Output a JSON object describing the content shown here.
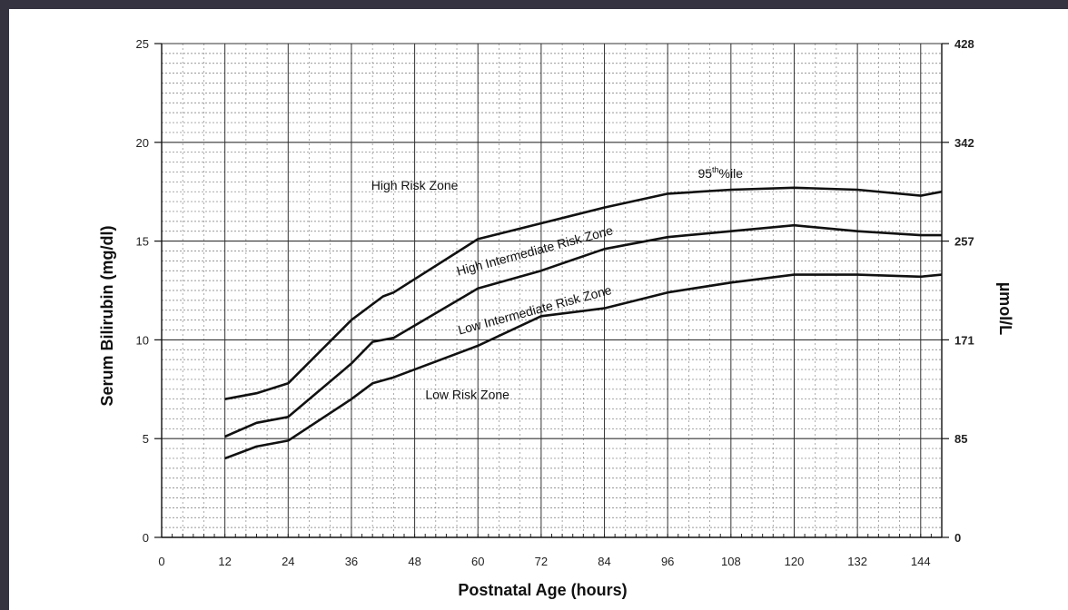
{
  "chart_data": {
    "type": "line",
    "xlabel": "Postnatal Age (hours)",
    "ylabel": "Serum Bilirubin (mg/dl)",
    "y2label": "µmol/L",
    "xlim": [
      0,
      148
    ],
    "ylim": [
      0,
      25
    ],
    "x_ticks": [
      0,
      12,
      24,
      36,
      48,
      60,
      72,
      84,
      96,
      108,
      120,
      132,
      144
    ],
    "y_ticks": [
      0,
      5,
      10,
      15,
      20,
      25
    ],
    "y2_ticks": [
      {
        "value": 0,
        "label": "0"
      },
      {
        "value": 5,
        "label": "85"
      },
      {
        "value": 10,
        "label": "171"
      },
      {
        "value": 15,
        "label": "257"
      },
      {
        "value": 20,
        "label": "342"
      },
      {
        "value": 25,
        "label": "428"
      }
    ],
    "grid": true,
    "series": [
      {
        "name": "95th %ile",
        "x": [
          12,
          18,
          24,
          36,
          42,
          44,
          60,
          72,
          84,
          96,
          108,
          120,
          132,
          144,
          148
        ],
        "y": [
          7.0,
          7.3,
          7.8,
          11.0,
          12.2,
          12.4,
          15.1,
          15.9,
          16.7,
          17.4,
          17.6,
          17.7,
          17.6,
          17.3,
          17.5
        ]
      },
      {
        "x": [
          12,
          18,
          24,
          36,
          40,
          44,
          60,
          72,
          84,
          96,
          108,
          120,
          132,
          144,
          148
        ],
        "y": [
          5.1,
          5.8,
          6.1,
          8.8,
          9.9,
          10.1,
          12.6,
          13.5,
          14.6,
          15.2,
          15.5,
          15.8,
          15.5,
          15.3,
          15.3
        ]
      },
      {
        "x": [
          12,
          18,
          24,
          36,
          40,
          44,
          60,
          72,
          84,
          96,
          108,
          120,
          132,
          144,
          148
        ],
        "y": [
          4.0,
          4.6,
          4.9,
          7.0,
          7.8,
          8.1,
          9.7,
          11.2,
          11.6,
          12.4,
          12.9,
          13.3,
          13.3,
          13.2,
          13.3
        ]
      }
    ],
    "annotations": [
      {
        "text": "High Risk Zone",
        "x": 48,
        "y": 17.6,
        "angle": 0
      },
      {
        "text": "High Intermediate Risk Zone",
        "x": 71,
        "y": 14.3,
        "angle": -15
      },
      {
        "text": "Low Intermediate Risk Zone",
        "x": 71,
        "y": 11.3,
        "angle": -15
      },
      {
        "text": "Low Risk Zone",
        "x": 58,
        "y": 7.0,
        "angle": 0
      }
    ],
    "percentile_label": {
      "base": "95",
      "sup": "th",
      "rest": "%ile",
      "x": 106,
      "y": 18.2
    }
  }
}
